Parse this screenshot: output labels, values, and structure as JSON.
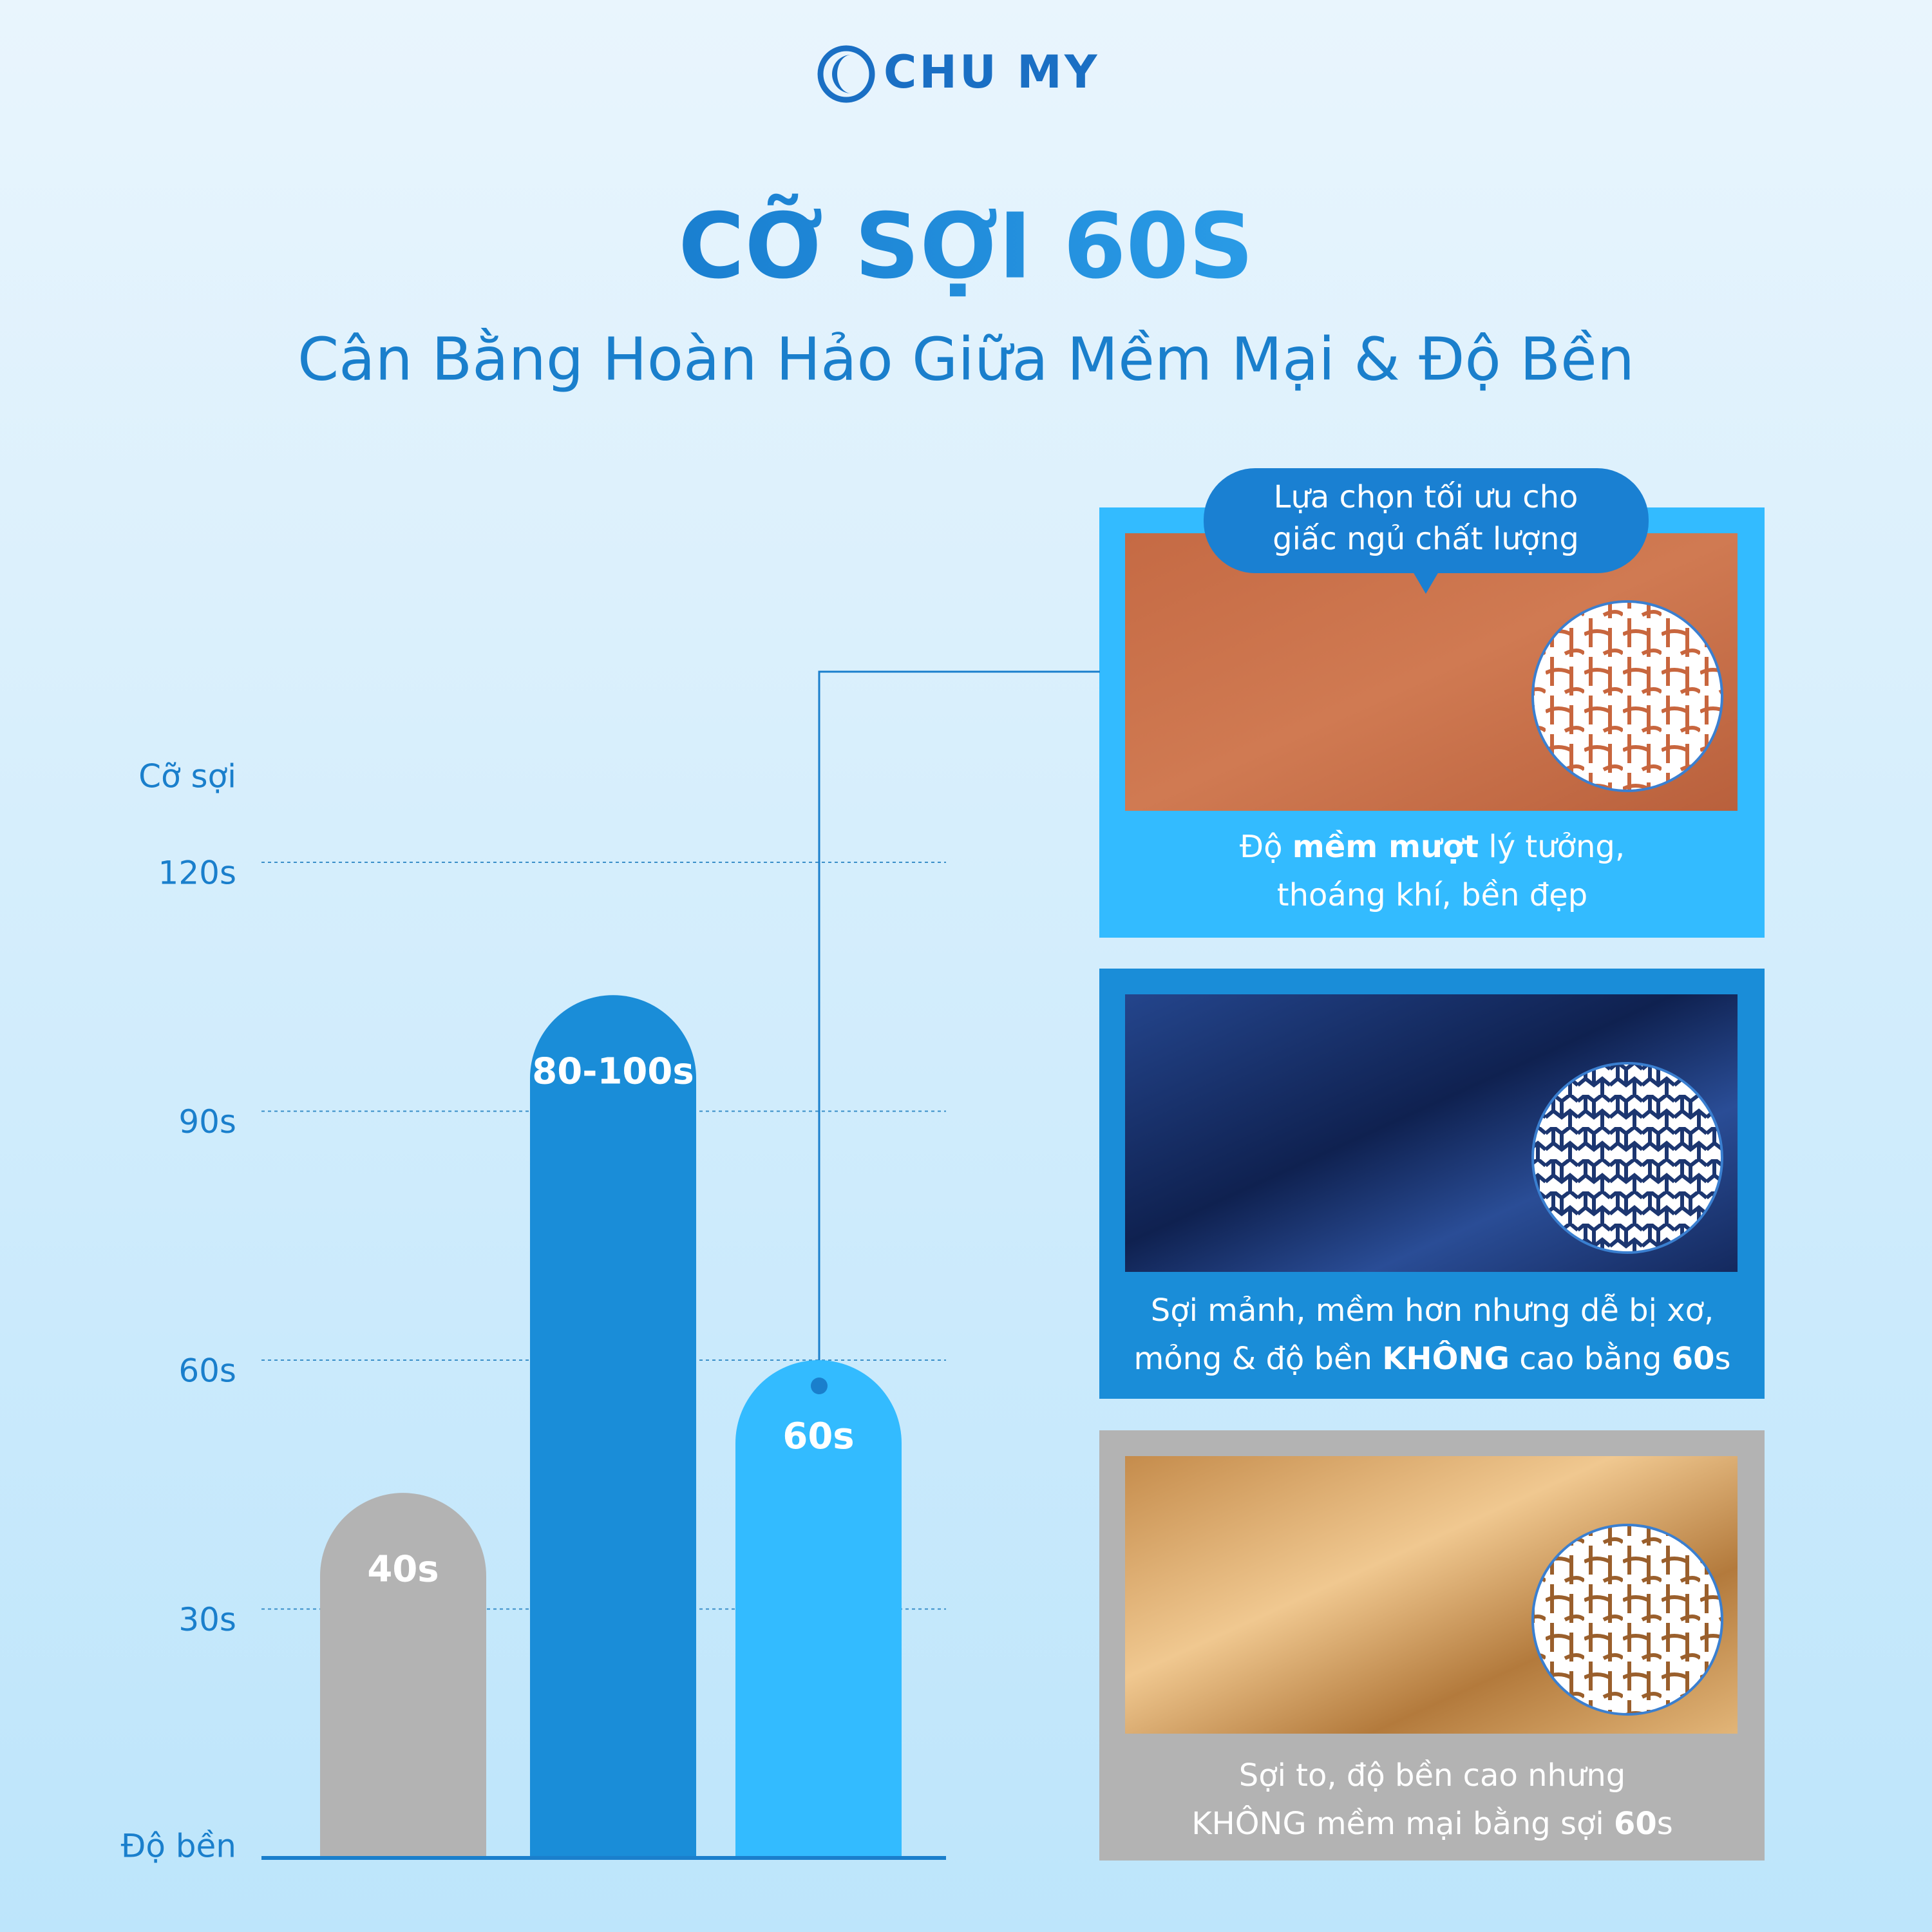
{
  "brand": "CHU MY",
  "title": "CỠ SỢI 60S",
  "subtitle": "Cân Bằng Hoàn Hảo Giữa Mềm Mại & Độ Bền",
  "chart_data": {
    "type": "bar",
    "y_label": "Cỡ sợi",
    "x_label": "Độ bền",
    "categories": [
      "40s",
      "80-100s",
      "60s"
    ],
    "values": [
      44,
      104,
      60
    ],
    "colors": [
      "#b3b3b3",
      "#1a8dd8",
      "#33bbff"
    ],
    "ylim": [
      0,
      120
    ],
    "yticks": [
      {
        "value": 30,
        "label": "30s"
      },
      {
        "value": 60,
        "label": "60s"
      },
      {
        "value": 90,
        "label": "90s"
      },
      {
        "value": 120,
        "label": "120s"
      }
    ],
    "grid": true
  },
  "badge": [
    "Lựa chọn tối ưu cho",
    "giấc ngủ chất lượng"
  ],
  "cards": [
    {
      "caption": [
        [
          {
            "text": "Độ "
          },
          {
            "text": "mềm mượt",
            "bold": true
          },
          {
            "text": " lý tưởng,"
          }
        ],
        [
          {
            "text": "thoáng khí, bền đẹp"
          }
        ]
      ]
    },
    {
      "caption": [
        [
          {
            "text": "Sợi mảnh, mềm hơn nhưng dễ bị xơ,"
          }
        ],
        [
          {
            "text": "mỏng & độ bền "
          },
          {
            "text": "KHÔNG",
            "bold": true
          },
          {
            "text": " cao bằng "
          },
          {
            "text": "60",
            "bold": true
          },
          {
            "text": "s"
          }
        ]
      ]
    },
    {
      "caption": [
        [
          {
            "text": "Sợi to, độ bền cao nhưng"
          }
        ],
        [
          {
            "text": "KHÔNG mềm mại bằng sợi "
          },
          {
            "text": "60",
            "bold": true
          },
          {
            "text": "s"
          }
        ]
      ]
    }
  ]
}
